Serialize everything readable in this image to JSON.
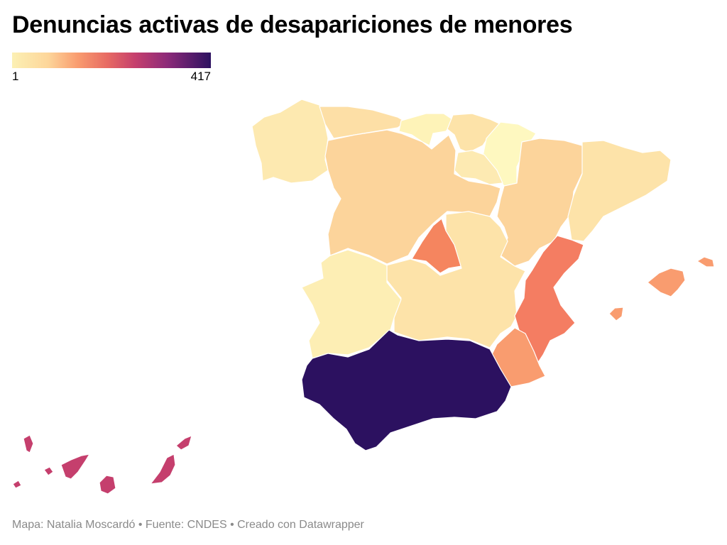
{
  "title": "Denuncias activas de desapariciones de menores",
  "legend": {
    "min_label": "1",
    "max_label": "417"
  },
  "colors": {
    "galicia": "#fde9b0",
    "asturias": "#fddfa6",
    "cantabria": "#fef3b8",
    "pais_vasco": "#fde3a9",
    "navarra": "#fef8c0",
    "la_rioja": "#fdeab2",
    "castilla_leon": "#fcd49b",
    "aragon": "#fcd49b",
    "cataluna": "#fde3a9",
    "madrid": "#f5855f",
    "castilla_la_mancha": "#fde3a9",
    "extremadura": "#fdeeb4",
    "valencia": "#f47d62",
    "murcia": "#f99c6f",
    "andalucia": "#2c1160",
    "baleares": "#f99c6f",
    "canarias": "#c53f6d"
  },
  "footer": "Mapa: Natalia Moscardó • Fuente: CNDES • Creado con Datawrapper"
}
